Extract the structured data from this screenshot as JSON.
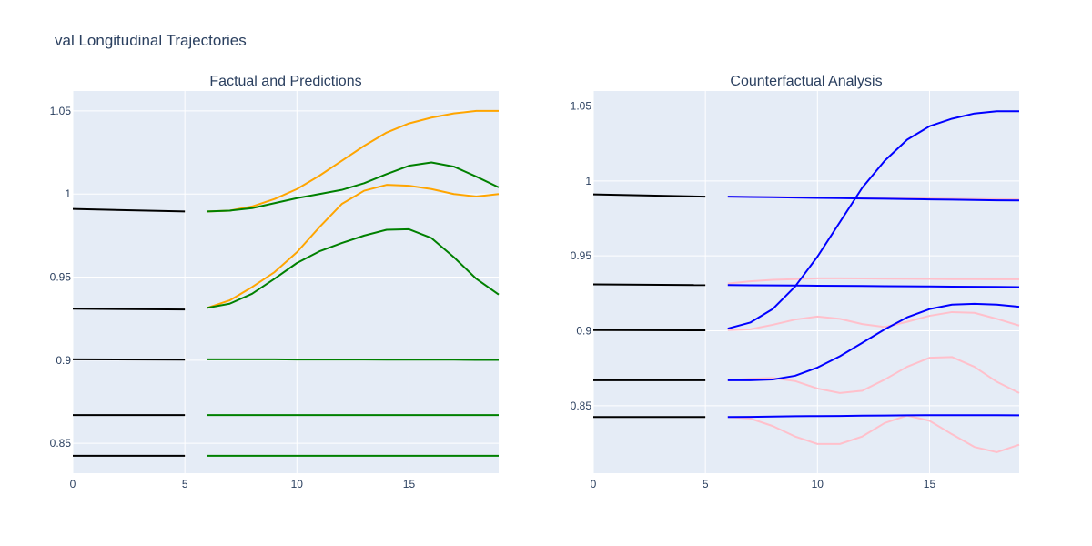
{
  "figure_title": "val Longitudinal Trajectories",
  "colors": {
    "plot_bg": "#e5ecf6",
    "grid": "#ffffff",
    "text": "#2a3f5f",
    "history": "#000000",
    "factual_target": "#ffa500",
    "factual_prediction": "#008000",
    "counterfactual_a": "#0000ff",
    "counterfactual_b": "#ffc0cb"
  },
  "chart_data": [
    {
      "type": "line",
      "title": "Factual and Predictions",
      "xlim": [
        0,
        19
      ],
      "ylim": [
        0.832,
        1.062
      ],
      "xticks": [
        0,
        5,
        10,
        15
      ],
      "xtick_labels": [
        "0",
        "5",
        "10",
        "15"
      ],
      "yticks": [
        0.85,
        0.9,
        0.95,
        1.0,
        1.05
      ],
      "ytick_labels": [
        "0.85",
        "0.9",
        "0.95",
        "1",
        "1.05"
      ],
      "grid": true,
      "series": [
        {
          "color": "#000000",
          "x": [
            0,
            5
          ],
          "y": [
            0.991,
            0.9895
          ]
        },
        {
          "color": "#000000",
          "x": [
            0,
            5
          ],
          "y": [
            0.931,
            0.9305
          ]
        },
        {
          "color": "#000000",
          "x": [
            0,
            5
          ],
          "y": [
            0.9005,
            0.9003
          ]
        },
        {
          "color": "#000000",
          "x": [
            0,
            5
          ],
          "y": [
            0.867,
            0.867
          ]
        },
        {
          "color": "#000000",
          "x": [
            0,
            5
          ],
          "y": [
            0.8425,
            0.8425
          ]
        },
        {
          "color": "#ffa500",
          "x": [
            6,
            7,
            8,
            9,
            10,
            11,
            12,
            13,
            14,
            15,
            16,
            17,
            18,
            19
          ],
          "y": [
            0.9895,
            0.99,
            0.9925,
            0.997,
            1.003,
            1.011,
            1.02,
            1.029,
            1.037,
            1.0425,
            1.046,
            1.0485,
            1.05,
            1.05
          ]
        },
        {
          "color": "#ffa500",
          "x": [
            6,
            7,
            8,
            9,
            10,
            11,
            12,
            13,
            14,
            15,
            16,
            17,
            18,
            19
          ],
          "y": [
            0.9315,
            0.936,
            0.944,
            0.953,
            0.965,
            0.98,
            0.994,
            1.002,
            1.0055,
            1.005,
            1.003,
            1.0,
            0.9985,
            1.0
          ]
        },
        {
          "color": "#008000",
          "x": [
            6,
            7,
            8,
            9,
            10,
            11,
            12,
            13,
            14,
            15,
            16,
            17,
            18,
            19
          ],
          "y": [
            0.9895,
            0.99,
            0.9915,
            0.9945,
            0.9975,
            1.0,
            1.0025,
            1.0065,
            1.012,
            1.017,
            1.019,
            1.0165,
            1.0105,
            1.004
          ]
        },
        {
          "color": "#008000",
          "x": [
            6,
            7,
            8,
            9,
            10,
            11,
            12,
            13,
            14,
            15,
            16,
            17,
            18,
            19
          ],
          "y": [
            0.9315,
            0.934,
            0.94,
            0.949,
            0.9585,
            0.9655,
            0.9705,
            0.975,
            0.9785,
            0.9788,
            0.9735,
            0.962,
            0.949,
            0.9395
          ]
        },
        {
          "color": "#008000",
          "x": [
            6,
            7,
            8,
            9,
            10,
            11,
            12,
            13,
            14,
            15,
            16,
            17,
            18,
            19
          ],
          "y": [
            0.9005,
            0.9005,
            0.9005,
            0.9005,
            0.9004,
            0.9004,
            0.9004,
            0.9004,
            0.9003,
            0.9003,
            0.9003,
            0.9003,
            0.9002,
            0.9002
          ]
        },
        {
          "color": "#008000",
          "x": [
            6,
            7,
            8,
            9,
            10,
            11,
            12,
            13,
            14,
            15,
            16,
            17,
            18,
            19
          ],
          "y": [
            0.867,
            0.867,
            0.867,
            0.867,
            0.867,
            0.867,
            0.867,
            0.867,
            0.867,
            0.867,
            0.867,
            0.867,
            0.867,
            0.867
          ]
        },
        {
          "color": "#008000",
          "x": [
            6,
            7,
            8,
            9,
            10,
            11,
            12,
            13,
            14,
            15,
            16,
            17,
            18,
            19
          ],
          "y": [
            0.8425,
            0.8425,
            0.8425,
            0.8425,
            0.8425,
            0.8425,
            0.8425,
            0.8425,
            0.8425,
            0.8425,
            0.8425,
            0.8425,
            0.8425,
            0.8425
          ]
        }
      ]
    },
    {
      "type": "line",
      "title": "Counterfactual Analysis",
      "xlim": [
        0,
        19
      ],
      "ylim": [
        0.805,
        1.06
      ],
      "xticks": [
        0,
        5,
        10,
        15
      ],
      "xtick_labels": [
        "0",
        "5",
        "10",
        "15"
      ],
      "yticks": [
        0.85,
        0.9,
        0.95,
        1.0,
        1.05
      ],
      "ytick_labels": [
        "0.85",
        "0.9",
        "0.95",
        "1",
        "1.05"
      ],
      "grid": true,
      "series": [
        {
          "color": "#000000",
          "x": [
            0,
            5
          ],
          "y": [
            0.991,
            0.9895
          ]
        },
        {
          "color": "#000000",
          "x": [
            0,
            5
          ],
          "y": [
            0.931,
            0.9305
          ]
        },
        {
          "color": "#000000",
          "x": [
            0,
            5
          ],
          "y": [
            0.9005,
            0.9003
          ]
        },
        {
          "color": "#000000",
          "x": [
            0,
            5
          ],
          "y": [
            0.867,
            0.867
          ]
        },
        {
          "color": "#000000",
          "x": [
            0,
            5
          ],
          "y": [
            0.8425,
            0.8425
          ]
        },
        {
          "color": "#ffc0cb",
          "x": [
            6,
            7,
            8,
            9,
            10,
            11,
            12,
            13,
            14,
            15,
            16,
            17,
            18,
            19
          ],
          "y": [
            0.9895,
            0.9894,
            0.9893,
            0.9891,
            0.989,
            0.9889,
            0.9887,
            0.9886,
            0.9884,
            0.9883,
            0.9881,
            0.988,
            0.9878,
            0.9877
          ]
        },
        {
          "color": "#ffc0cb",
          "x": [
            6,
            7,
            8,
            9,
            10,
            11,
            12,
            13,
            14,
            15,
            16,
            17,
            18,
            19
          ],
          "y": [
            0.9315,
            0.933,
            0.934,
            0.9345,
            0.935,
            0.935,
            0.9349,
            0.9348,
            0.9347,
            0.9346,
            0.9345,
            0.9345,
            0.9344,
            0.9344
          ]
        },
        {
          "color": "#ffc0cb",
          "x": [
            6,
            7,
            8,
            9,
            10,
            11,
            12,
            13,
            14,
            15,
            16,
            17,
            18,
            19
          ],
          "y": [
            0.9005,
            0.901,
            0.904,
            0.9075,
            0.9095,
            0.908,
            0.9045,
            0.9025,
            0.906,
            0.91,
            0.9125,
            0.912,
            0.908,
            0.9035
          ]
        },
        {
          "color": "#ffc0cb",
          "x": [
            6,
            7,
            8,
            9,
            10,
            11,
            12,
            13,
            14,
            15,
            16,
            17,
            18,
            19
          ],
          "y": [
            0.867,
            0.868,
            0.8685,
            0.8665,
            0.8615,
            0.8585,
            0.86,
            0.8675,
            0.876,
            0.882,
            0.8825,
            0.876,
            0.866,
            0.8585
          ]
        },
        {
          "color": "#ffc0cb",
          "x": [
            6,
            7,
            8,
            9,
            10,
            11,
            12,
            13,
            14,
            15,
            16,
            17,
            18,
            19
          ],
          "y": [
            0.8425,
            0.8415,
            0.8365,
            0.8295,
            0.8245,
            0.8245,
            0.8295,
            0.8385,
            0.8435,
            0.84,
            0.831,
            0.8225,
            0.819,
            0.824
          ]
        },
        {
          "color": "#0000ff",
          "x": [
            6,
            7,
            8,
            9,
            10,
            11,
            12,
            13,
            14,
            15,
            16,
            17,
            18,
            19
          ],
          "y": [
            0.9015,
            0.9055,
            0.9145,
            0.9295,
            0.9495,
            0.9725,
            0.9955,
            1.0135,
            1.0275,
            1.0365,
            1.0415,
            1.045,
            1.0465,
            1.0465
          ]
        },
        {
          "color": "#0000ff",
          "x": [
            6,
            7,
            8,
            9,
            10,
            11,
            12,
            13,
            14,
            15,
            16,
            17,
            18,
            19
          ],
          "y": [
            0.9895,
            0.9893,
            0.9891,
            0.9889,
            0.9887,
            0.9885,
            0.9883,
            0.9881,
            0.9879,
            0.9877,
            0.9875,
            0.9873,
            0.9871,
            0.987
          ]
        },
        {
          "color": "#0000ff",
          "x": [
            6,
            7,
            8,
            9,
            10,
            11,
            12,
            13,
            14,
            15,
            16,
            17,
            18,
            19
          ],
          "y": [
            0.9305,
            0.9304,
            0.9303,
            0.9302,
            0.9301,
            0.93,
            0.9299,
            0.9298,
            0.9297,
            0.9296,
            0.9295,
            0.9294,
            0.9293,
            0.9292
          ]
        },
        {
          "color": "#0000ff",
          "x": [
            6,
            7,
            8,
            9,
            10,
            11,
            12,
            13,
            14,
            15,
            16,
            17,
            18,
            19
          ],
          "y": [
            0.867,
            0.867,
            0.8675,
            0.87,
            0.8755,
            0.883,
            0.892,
            0.901,
            0.909,
            0.9145,
            0.9175,
            0.918,
            0.9175,
            0.916
          ]
        },
        {
          "color": "#0000ff",
          "x": [
            6,
            7,
            8,
            9,
            10,
            11,
            12,
            13,
            14,
            15,
            16,
            17,
            18,
            19
          ],
          "y": [
            0.8425,
            0.8426,
            0.8428,
            0.843,
            0.8431,
            0.8432,
            0.8434,
            0.8435,
            0.8436,
            0.8437,
            0.8437,
            0.8437,
            0.8437,
            0.8436
          ]
        }
      ]
    }
  ]
}
